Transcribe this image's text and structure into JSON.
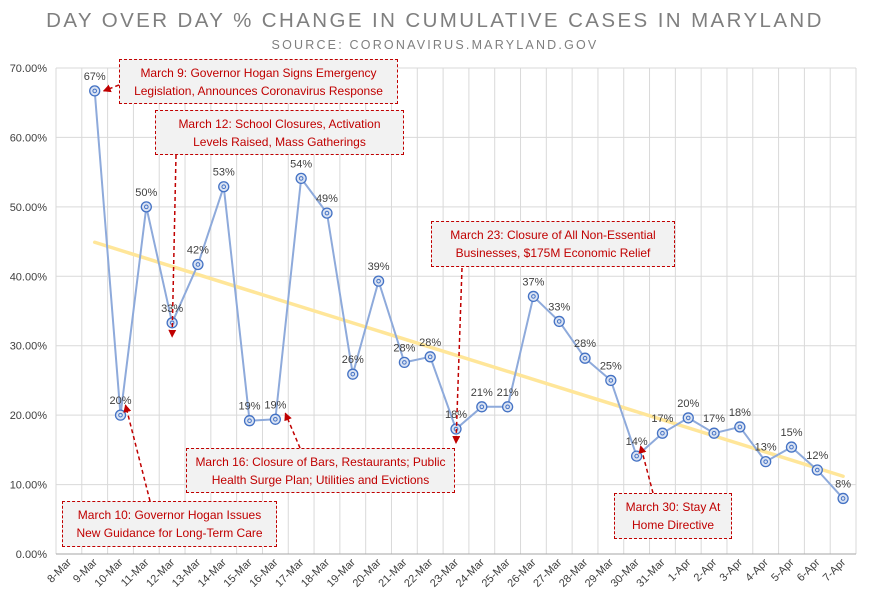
{
  "chart_data": {
    "type": "line",
    "title": "DAY OVER DAY % CHANGE IN CUMULATIVE CASES IN MARYLAND",
    "subtitle": "SOURCE: CORONAVIRUS.MARYLAND.GOV",
    "categories": [
      "8-Mar",
      "9-Mar",
      "10-Mar",
      "11-Mar",
      "12-Mar",
      "13-Mar",
      "14-Mar",
      "15-Mar",
      "16-Mar",
      "17-Mar",
      "18-Mar",
      "19-Mar",
      "20-Mar",
      "21-Mar",
      "22-Mar",
      "23-Mar",
      "24-Mar",
      "25-Mar",
      "26-Mar",
      "27-Mar",
      "28-Mar",
      "29-Mar",
      "30-Mar",
      "31-Mar",
      "1-Apr",
      "2-Apr",
      "3-Apr",
      "4-Apr",
      "5-Apr",
      "6-Apr",
      "7-Apr"
    ],
    "values": [
      null,
      66.7,
      20.0,
      50.0,
      33.3,
      41.7,
      52.9,
      19.2,
      19.4,
      54.1,
      49.1,
      25.9,
      39.3,
      27.6,
      28.4,
      18.0,
      21.2,
      21.2,
      37.1,
      33.5,
      28.2,
      25.0,
      14.1,
      17.4,
      19.6,
      17.4,
      18.3,
      13.3,
      15.4,
      12.1,
      8.0
    ],
    "data_labels": [
      "",
      "67%",
      "20%",
      "50%",
      "33%",
      "42%",
      "53%",
      "19%",
      "19%",
      "54%",
      "49%",
      "26%",
      "39%",
      "28%",
      "28%",
      "18%",
      "21%",
      "21%",
      "37%",
      "33%",
      "28%",
      "25%",
      "14%",
      "17%",
      "20%",
      "17%",
      "18%",
      "13%",
      "15%",
      "12%",
      "8%"
    ],
    "ylim": [
      0,
      70
    ],
    "y_ticks": [
      0,
      10,
      20,
      30,
      40,
      50,
      60,
      70
    ],
    "y_tick_labels": [
      "0.00%",
      "10.00%",
      "20.00%",
      "30.00%",
      "40.00%",
      "50.00%",
      "60.00%",
      "70.00%"
    ],
    "trendline": {
      "type": "linear",
      "start": [
        1,
        44.9
      ],
      "end": [
        30,
        11.2
      ]
    },
    "grid": true,
    "colors": {
      "series": "#8eaadb",
      "marker": "#4472c4",
      "trend": "#ffe699",
      "annotation": "#c00000",
      "grid": "#d9d9d9",
      "text": "#404040"
    }
  },
  "annotations": [
    {
      "id": "march-9",
      "line1": "March 9: Governor Hogan Signs Emergency",
      "line2": "Legislation, Announces Coronavirus Response",
      "target": 1
    },
    {
      "id": "march-12",
      "line1": "March 12: School Closures, Activation",
      "line2": "Levels Raised, Mass Gatherings",
      "target": 4
    },
    {
      "id": "march-23",
      "line1": "March 23: Closure of All Non-Essential",
      "line2": "Businesses, $175M Economic Relief",
      "target": 15
    },
    {
      "id": "march-16",
      "line1": "March 16: Closure of Bars, Restaurants; Public",
      "line2": "Health Surge Plan; Utilities and Evictions",
      "target": 8
    },
    {
      "id": "march-10",
      "line1": "March 10: Governor Hogan Issues",
      "line2": "New Guidance for Long-Term Care",
      "target": 2
    },
    {
      "id": "march-30",
      "line1": "March 30: Stay At",
      "line2": "Home Directive",
      "target": 22
    }
  ]
}
